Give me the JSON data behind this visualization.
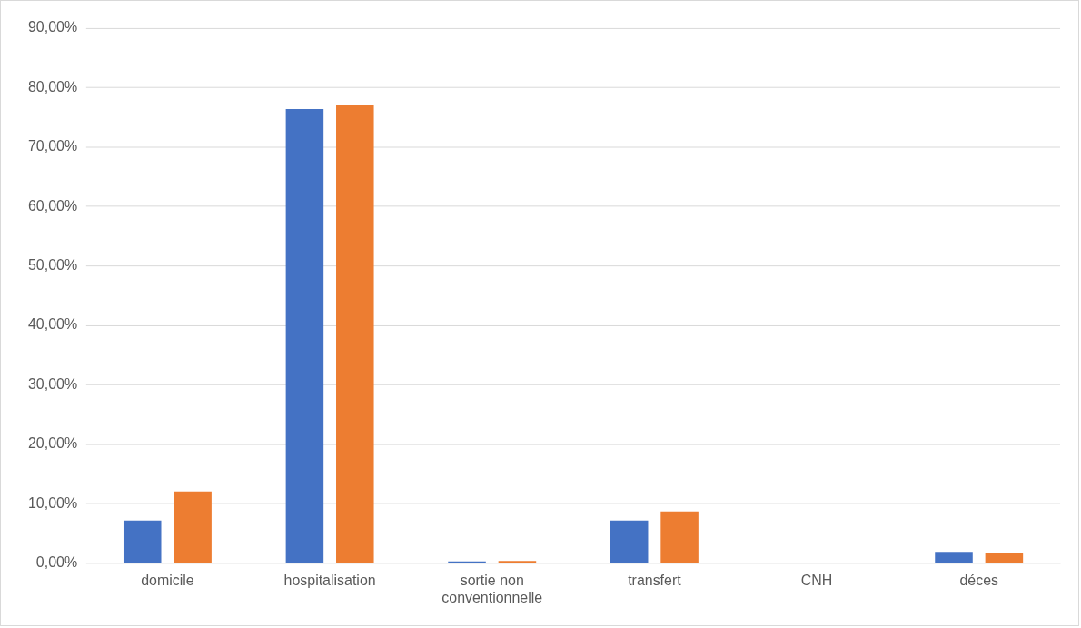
{
  "chart_data": {
    "type": "bar",
    "categories": [
      "domicile",
      "hospitalisation",
      "sortie non conventionnelle",
      "transfert",
      "CNH",
      "déces"
    ],
    "series": [
      {
        "color": "#4472c4",
        "values": [
          7.2,
          76.4,
          0.3,
          7.2,
          0,
          1.9
        ]
      },
      {
        "color": "#ed7d31",
        "values": [
          12.1,
          77.1,
          0.4,
          8.7,
          0,
          1.7
        ]
      }
    ],
    "ylim": [
      0,
      90
    ],
    "yticks": [
      {
        "value": 0,
        "label": "0,00%"
      },
      {
        "value": 10,
        "label": "10,00%"
      },
      {
        "value": 20,
        "label": "20,00%"
      },
      {
        "value": 30,
        "label": "30,00%"
      },
      {
        "value": 40,
        "label": "40,00%"
      },
      {
        "value": 50,
        "label": "50,00%"
      },
      {
        "value": 60,
        "label": "60,00%"
      },
      {
        "value": 70,
        "label": "70,00%"
      },
      {
        "value": 80,
        "label": "80,00%"
      },
      {
        "value": 90,
        "label": "90,00%"
      }
    ],
    "grid": "y",
    "legend": false
  }
}
